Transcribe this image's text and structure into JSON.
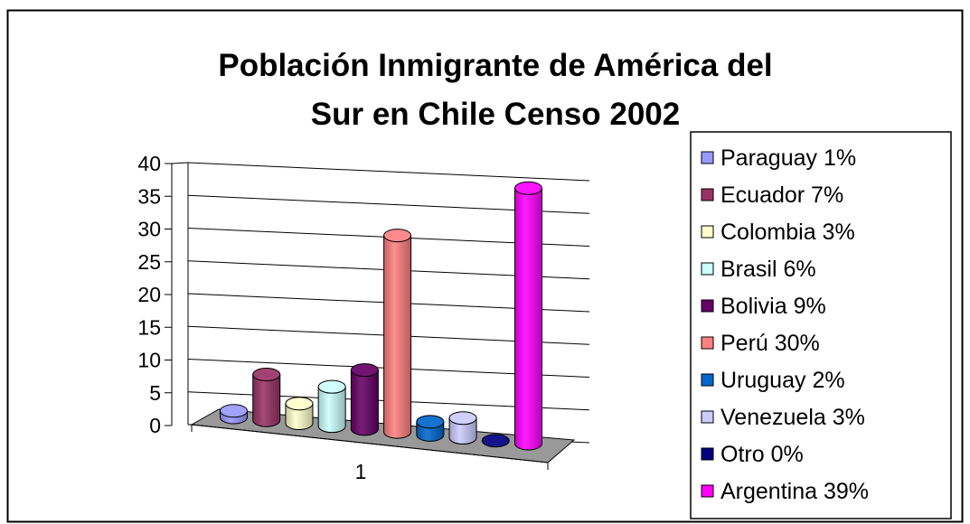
{
  "chart_data": {
    "type": "bar",
    "title_lines": [
      "Población Inmigrante de América del",
      "Sur en Chile Censo 2002"
    ],
    "categories": [
      "1"
    ],
    "ylim": [
      0,
      40
    ],
    "yticks": [
      "0",
      "5",
      "10",
      "15",
      "20",
      "25",
      "30",
      "35",
      "40"
    ],
    "grid": true,
    "legend_position": "right",
    "series": [
      {
        "name": "Paraguay 1%",
        "values": [
          1
        ],
        "color": "#9999ff"
      },
      {
        "name": "Ecuador 7%",
        "values": [
          7
        ],
        "color": "#993366"
      },
      {
        "name": "Colombia 3%",
        "values": [
          3
        ],
        "color": "#ffffcc"
      },
      {
        "name": "Brasil 6%",
        "values": [
          6
        ],
        "color": "#ccffff"
      },
      {
        "name": "Bolivia 9%",
        "values": [
          9
        ],
        "color": "#660066"
      },
      {
        "name": "Perú 30%",
        "values": [
          30
        ],
        "color": "#ff8080"
      },
      {
        "name": "Uruguay 2%",
        "values": [
          2
        ],
        "color": "#0066cc"
      },
      {
        "name": "Venezuela 3%",
        "values": [
          3
        ],
        "color": "#ccccff"
      },
      {
        "name": "Otro 0%",
        "values": [
          0
        ],
        "color": "#000080"
      },
      {
        "name": "Argentina 39%",
        "values": [
          39
        ],
        "color": "#ff00ff"
      }
    ]
  }
}
